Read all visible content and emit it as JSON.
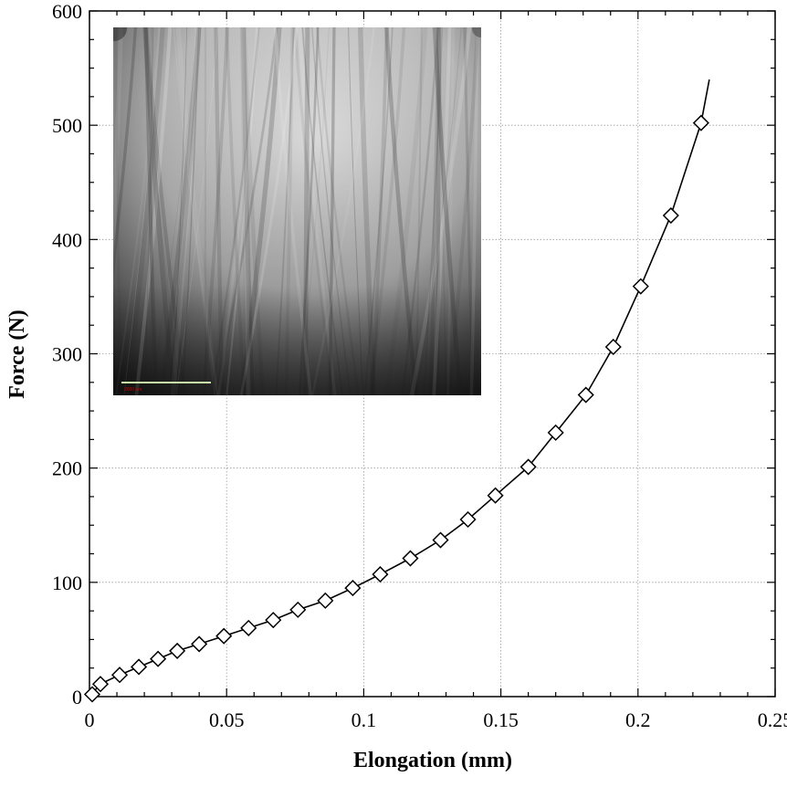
{
  "chart_data": {
    "type": "line",
    "xlabel": "Elongation (mm)",
    "ylabel": "Force (N)",
    "xlim": [
      0,
      0.25
    ],
    "ylim": [
      0,
      600
    ],
    "x_ticks": [
      0,
      0.05,
      0.1,
      0.15,
      0.2,
      0.25
    ],
    "x_tick_labels": [
      "0",
      "0.05",
      "0.1",
      "0.15",
      "0.2",
      "0.25"
    ],
    "y_ticks": [
      0,
      100,
      200,
      300,
      400,
      500,
      600
    ],
    "y_tick_labels": [
      "0",
      "100",
      "200",
      "300",
      "400",
      "500",
      "600"
    ],
    "grid": true,
    "series": [
      {
        "line_color": "#000000",
        "marker": "diamond",
        "marker_fill": "#ffffff",
        "curve": {
          "x": [
            0,
            0.004,
            0.011,
            0.018,
            0.025,
            0.032,
            0.04,
            0.049,
            0.058,
            0.067,
            0.076,
            0.086,
            0.096,
            0.106,
            0.117,
            0.128,
            0.138,
            0.148,
            0.16,
            0.17,
            0.181,
            0.191,
            0.201,
            0.212,
            0.223,
            0.226
          ],
          "y": [
            0,
            11,
            19,
            26,
            33,
            40,
            46,
            53,
            60,
            67,
            76,
            84,
            95,
            107,
            121,
            137,
            155,
            176,
            201,
            231,
            264,
            306,
            359,
            421,
            502,
            540
          ]
        },
        "markers": {
          "x": [
            0.001,
            0.004,
            0.011,
            0.018,
            0.025,
            0.032,
            0.04,
            0.049,
            0.058,
            0.067,
            0.076,
            0.086,
            0.096,
            0.106,
            0.117,
            0.128,
            0.138,
            0.148,
            0.16,
            0.17,
            0.181,
            0.191,
            0.201,
            0.212,
            0.223
          ],
          "y": [
            2,
            11,
            19,
            26,
            33,
            40,
            46,
            53,
            60,
            67,
            76,
            84,
            95,
            107,
            121,
            137,
            155,
            176,
            201,
            231,
            264,
            306,
            359,
            421,
            502
          ]
        }
      }
    ]
  },
  "inset_image": {
    "subject": "grayscale micrograph of aligned fiber bundle",
    "scale_bar_color": "#c8f0a8",
    "scale_bar_label": "2000 um"
  }
}
